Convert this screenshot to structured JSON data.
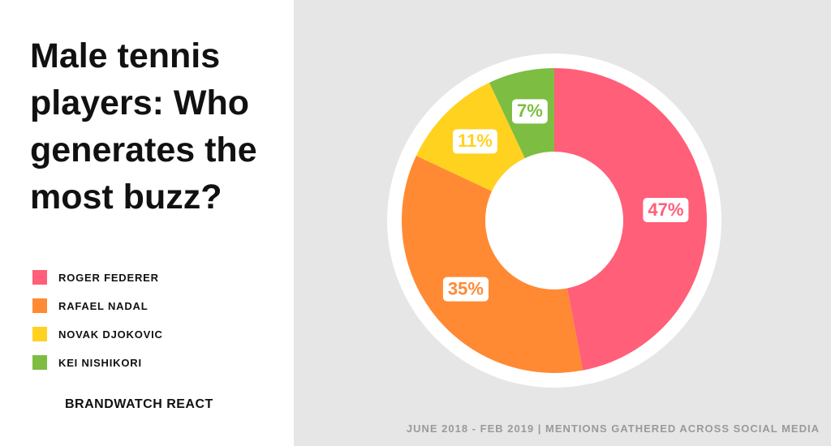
{
  "chart_data": {
    "type": "pie",
    "title": "Male tennis players: Who generates the most buzz?",
    "categories": [
      "ROGER FEDERER",
      "RAFAEL NADAL",
      "NOVAK DJOKOVIC",
      "KEI NISHIKORI"
    ],
    "values": [
      47,
      35,
      11,
      7
    ],
    "value_labels": [
      "47%",
      "35%",
      "11%",
      "7%"
    ],
    "colors": [
      "#ff5f78",
      "#ff8a33",
      "#ffd21f",
      "#7dbd42"
    ],
    "source": "BRANDWATCH REACT",
    "footnote": "JUNE 2018 - FEB 2019 | MENTIONS GATHERED ACROSS SOCIAL MEDIA"
  }
}
